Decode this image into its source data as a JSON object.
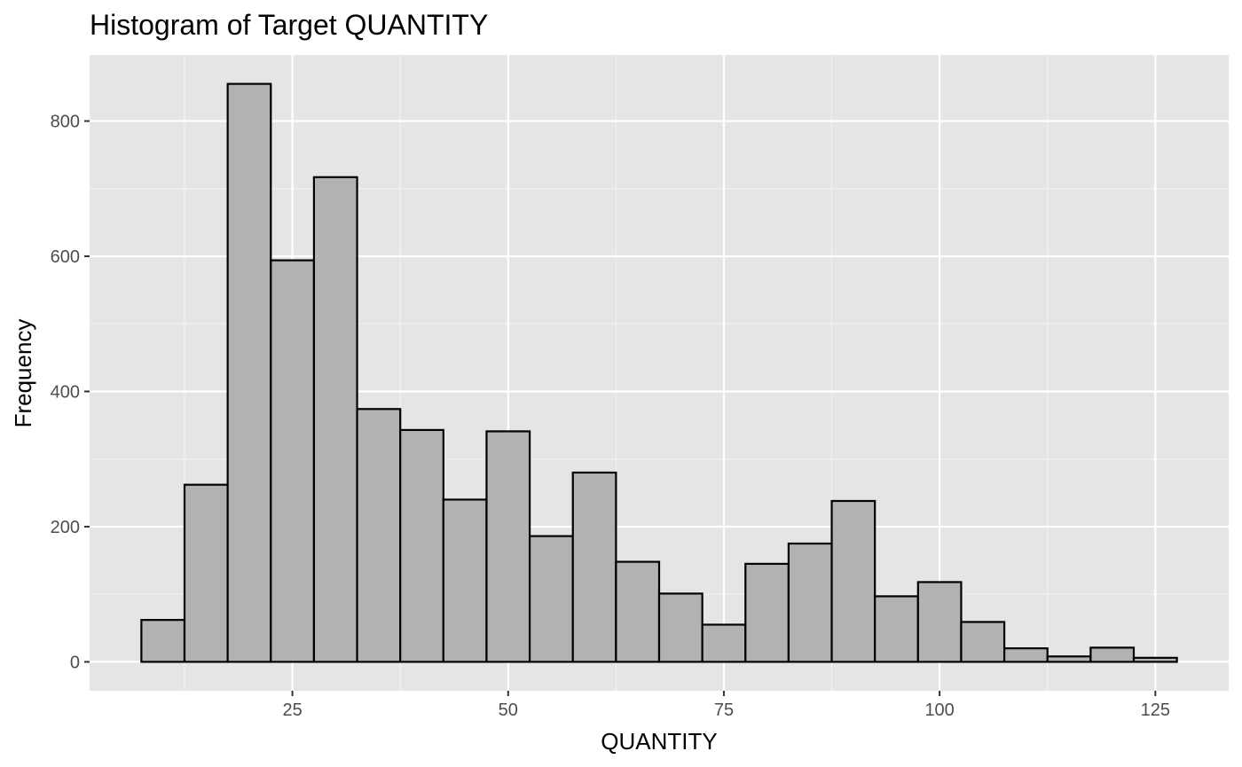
{
  "chart_data": {
    "type": "bar",
    "title": "Histogram of Target QUANTITY",
    "xlabel": "QUANTITY",
    "ylabel": "Frequency",
    "bin_width": 5,
    "bins": [
      {
        "x0": 7.5,
        "x1": 12.5,
        "count": 62
      },
      {
        "x0": 12.5,
        "x1": 17.5,
        "count": 262
      },
      {
        "x0": 17.5,
        "x1": 22.5,
        "count": 855
      },
      {
        "x0": 22.5,
        "x1": 27.5,
        "count": 594
      },
      {
        "x0": 27.5,
        "x1": 32.5,
        "count": 717
      },
      {
        "x0": 32.5,
        "x1": 37.5,
        "count": 374
      },
      {
        "x0": 37.5,
        "x1": 42.5,
        "count": 343
      },
      {
        "x0": 42.5,
        "x1": 47.5,
        "count": 240
      },
      {
        "x0": 47.5,
        "x1": 52.5,
        "count": 341
      },
      {
        "x0": 52.5,
        "x1": 57.5,
        "count": 186
      },
      {
        "x0": 57.5,
        "x1": 62.5,
        "count": 280
      },
      {
        "x0": 62.5,
        "x1": 67.5,
        "count": 148
      },
      {
        "x0": 67.5,
        "x1": 72.5,
        "count": 101
      },
      {
        "x0": 72.5,
        "x1": 77.5,
        "count": 55
      },
      {
        "x0": 77.5,
        "x1": 82.5,
        "count": 145
      },
      {
        "x0": 82.5,
        "x1": 87.5,
        "count": 175
      },
      {
        "x0": 87.5,
        "x1": 92.5,
        "count": 238
      },
      {
        "x0": 92.5,
        "x1": 97.5,
        "count": 97
      },
      {
        "x0": 97.5,
        "x1": 102.5,
        "count": 118
      },
      {
        "x0": 102.5,
        "x1": 107.5,
        "count": 59
      },
      {
        "x0": 107.5,
        "x1": 112.5,
        "count": 20
      },
      {
        "x0": 112.5,
        "x1": 117.5,
        "count": 8
      },
      {
        "x0": 117.5,
        "x1": 122.5,
        "count": 21
      },
      {
        "x0": 122.5,
        "x1": 127.5,
        "count": 6
      }
    ],
    "xlim": [
      1.5,
      133.5
    ],
    "ylim": [
      -42.75,
      897.75
    ],
    "x_ticks": [
      25,
      50,
      75,
      100,
      125
    ],
    "x_minor_ticks": [
      12.5,
      37.5,
      62.5,
      87.5,
      112.5
    ],
    "y_ticks": [
      0,
      200,
      400,
      600,
      800
    ],
    "y_minor_ticks": [
      100,
      300,
      500,
      700
    ],
    "grid": true,
    "colors": {
      "panel_background": "#e5e5e5",
      "grid_major": "#ffffff",
      "grid_minor": "#f2f2f2",
      "bar_fill": "#b2b2b2",
      "bar_outline": "#000000",
      "tick_label": "#4d4d4d",
      "tick_mark": "#333333"
    }
  }
}
